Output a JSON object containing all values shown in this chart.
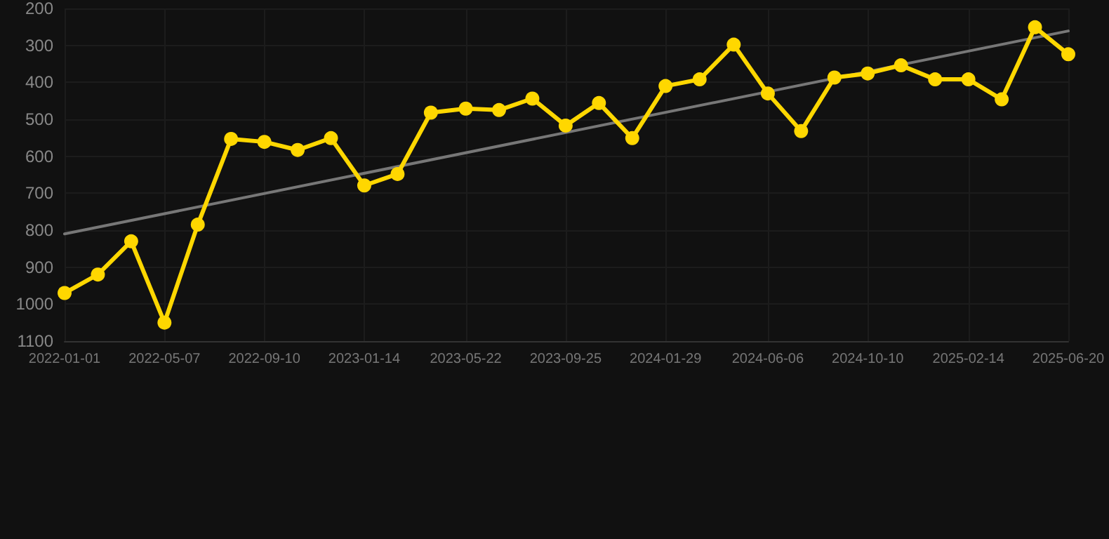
{
  "chart_data": {
    "type": "line",
    "x": [
      "2022-01-01",
      "2022-02-12",
      "2022-03-26",
      "2022-05-07",
      "2022-06-18",
      "2022-07-30",
      "2022-09-10",
      "2022-10-22",
      "2022-12-03",
      "2023-01-14",
      "2023-02-25",
      "2023-04-08",
      "2023-05-22",
      "2023-07-03",
      "2023-08-14",
      "2023-09-25",
      "2023-11-06",
      "2023-12-18",
      "2024-01-29",
      "2024-03-12",
      "2024-04-24",
      "2024-06-06",
      "2024-07-18",
      "2024-08-29",
      "2024-10-10",
      "2024-11-21",
      "2025-01-03",
      "2025-02-14",
      "2025-03-28",
      "2025-05-09",
      "2025-06-20"
    ],
    "series": [
      {
        "color": "#ffd700",
        "marker": "circle",
        "line_style": "solid",
        "values": [
          970,
          920,
          830,
          1050,
          785,
          553,
          561,
          583,
          551,
          679,
          648,
          482,
          471,
          475,
          444,
          517,
          456,
          551,
          410,
          392,
          298,
          430,
          532,
          387,
          376,
          354,
          392,
          392,
          446,
          251,
          324
        ]
      },
      {
        "type": "line",
        "color": "#777777",
        "marker": "none",
        "line_style": "solid",
        "x": [
          "2022-01-01",
          "2025-06-20"
        ],
        "values": [
          810,
          261
        ]
      }
    ],
    "xlim": [
      "2022-01-01",
      "2025-06-20"
    ],
    "xticks": [
      "2022-01-01",
      "2022-05-07",
      "2022-09-10",
      "2023-01-14",
      "2023-05-22",
      "2023-09-25",
      "2024-01-29",
      "2024-06-06",
      "2024-10-10",
      "2025-02-14",
      "2025-06-20"
    ],
    "ylim": [
      1100,
      200
    ],
    "yticks": [
      200,
      300,
      400,
      500,
      600,
      700,
      800,
      900,
      1000,
      1100
    ],
    "grid": true
  }
}
